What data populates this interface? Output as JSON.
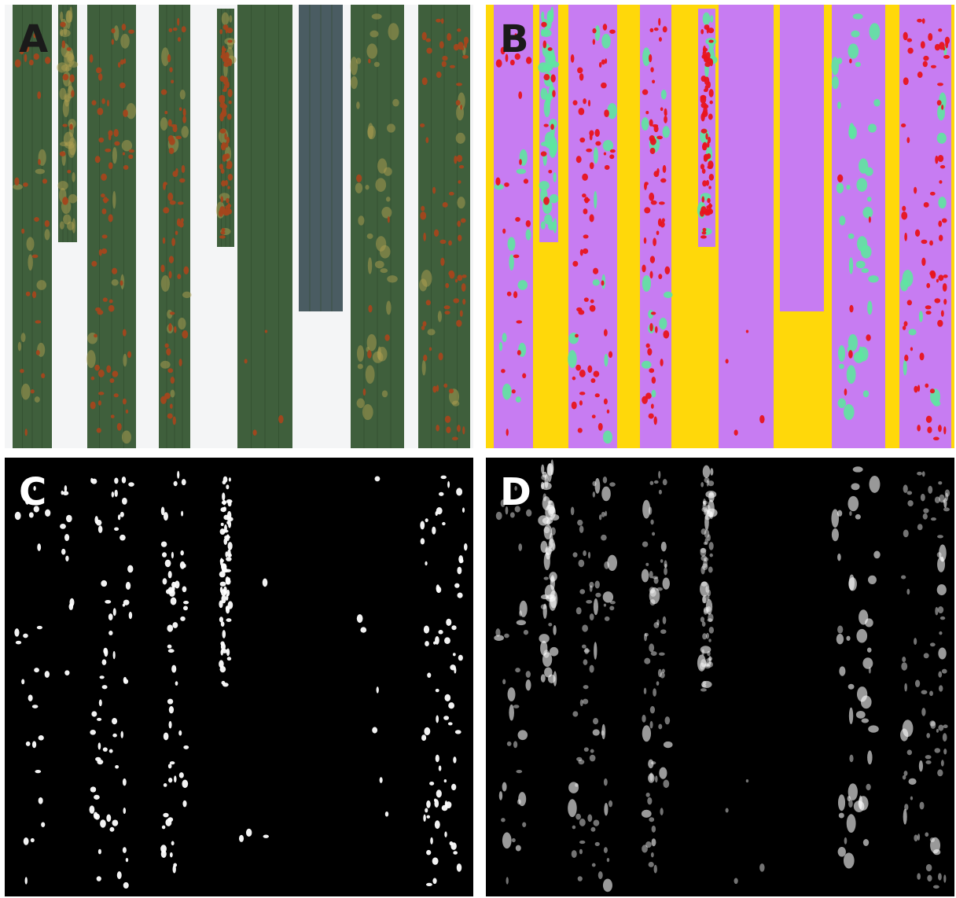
{
  "panels": {
    "a": {
      "label": "A"
    },
    "b": {
      "label": "B"
    },
    "c": {
      "label": "C"
    },
    "d": {
      "label": "D"
    }
  },
  "colors": {
    "background_white": "#f4f5f6",
    "leaf_green": "#3f5f3c",
    "leaf_blue_grey": "#4a5c62",
    "rust_pustule": "#a4461c",
    "chlorosis_yellow": "#b0a050",
    "segmentation_background": "#ffd80a",
    "segmentation_leaf": "#c77cf2",
    "segmentation_rust": "#e8141c",
    "segmentation_chlorosis": "#5ee6a0",
    "map_background": "#000000",
    "map_signal": "#ffffff"
  }
}
